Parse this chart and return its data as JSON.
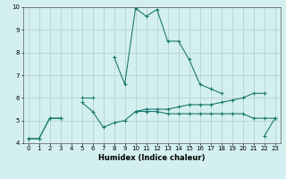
{
  "xlabel": "Humidex (Indice chaleur)",
  "ylabel": "",
  "background_color": "#d4efef",
  "grid_color": "#b0cccc",
  "line_color": "#1a7a6e",
  "xlim": [
    -0.5,
    23.5
  ],
  "ylim": [
    4,
    10
  ],
  "x": [
    0,
    1,
    2,
    3,
    4,
    5,
    6,
    7,
    8,
    9,
    10,
    11,
    12,
    13,
    14,
    15,
    16,
    17,
    18,
    19,
    20,
    21,
    22,
    23
  ],
  "line1": [
    4.2,
    4.2,
    5.1,
    5.1,
    null,
    6.0,
    6.0,
    null,
    7.8,
    6.6,
    9.95,
    9.6,
    9.9,
    8.5,
    8.5,
    7.7,
    6.6,
    6.4,
    6.2,
    null,
    null,
    null,
    null,
    null
  ],
  "line2": [
    null,
    null,
    null,
    null,
    null,
    5.8,
    5.4,
    4.7,
    4.9,
    5.0,
    5.4,
    5.4,
    5.4,
    5.3,
    5.3,
    5.3,
    5.3,
    5.3,
    5.3,
    5.3,
    5.3,
    5.1,
    5.1,
    5.1
  ],
  "line3": [
    null,
    null,
    null,
    null,
    null,
    null,
    null,
    null,
    null,
    null,
    5.4,
    5.5,
    5.5,
    5.5,
    5.6,
    5.7,
    5.7,
    5.7,
    5.8,
    5.9,
    6.0,
    6.2,
    6.2,
    null
  ],
  "line4": [
    4.2,
    4.2,
    5.1,
    5.1,
    null,
    null,
    null,
    null,
    null,
    null,
    null,
    null,
    null,
    null,
    null,
    null,
    null,
    null,
    null,
    null,
    null,
    null,
    4.3,
    5.1
  ]
}
